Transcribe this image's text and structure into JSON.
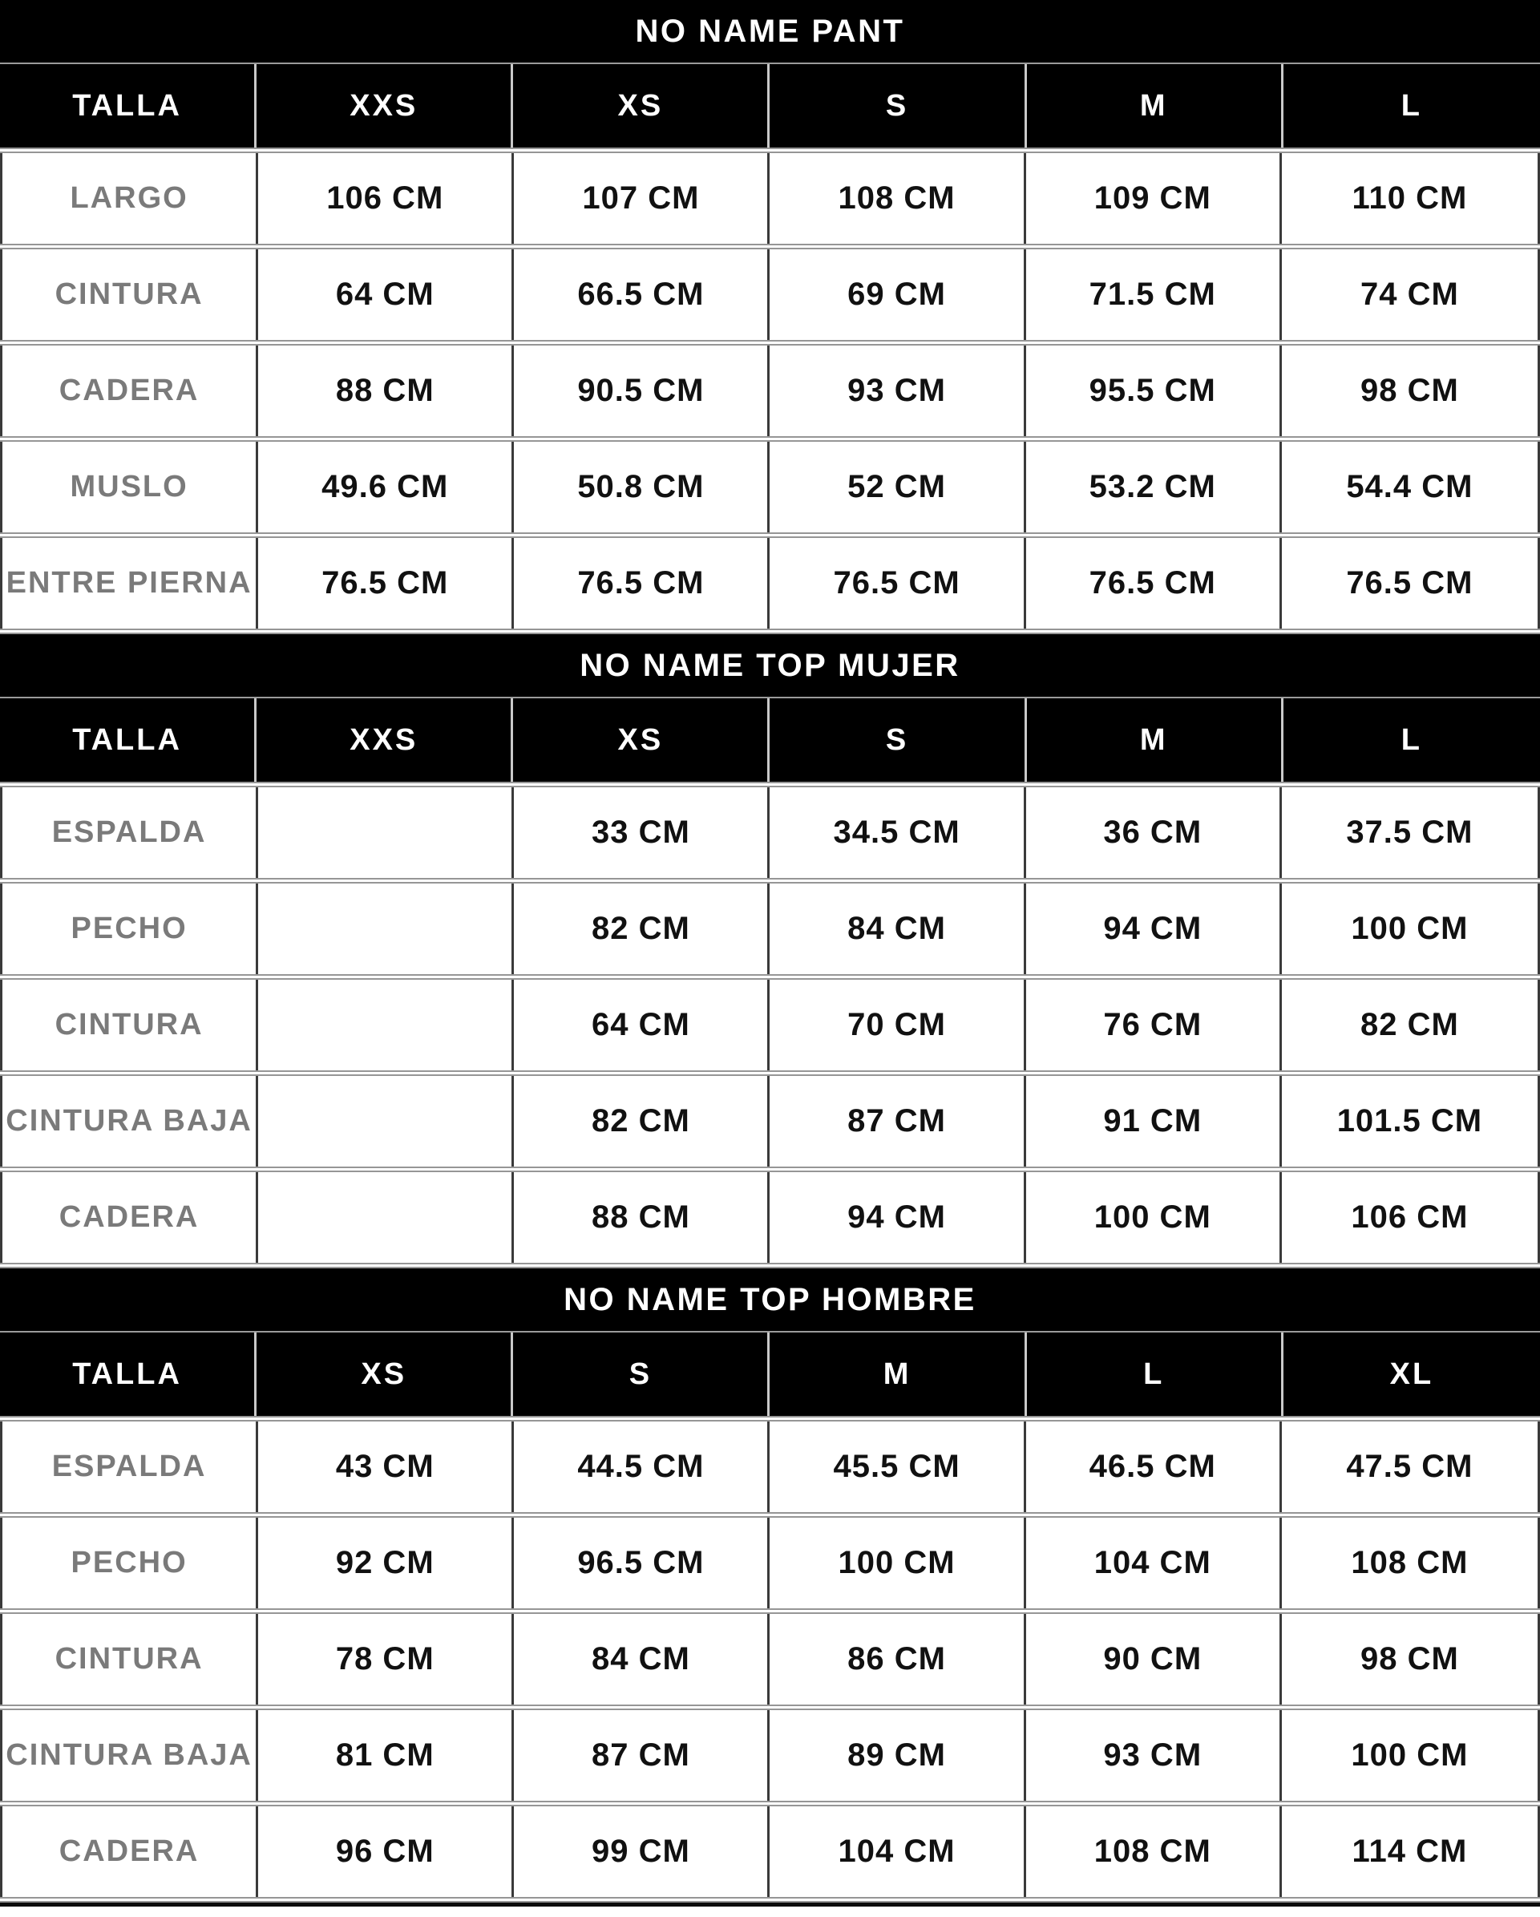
{
  "colors": {
    "band_background": "#000000",
    "band_text": "#ffffff",
    "row_label_text": "#7a7a7a",
    "value_text": "#111111",
    "grid_dark": "#3a3a3a",
    "grid_light": "#c9c9c9",
    "divider_gray": "#969696",
    "page_background": "#ffffff"
  },
  "tables": [
    {
      "title": "NO NAME PANT",
      "header": [
        "TALLA",
        "XXS",
        "XS",
        "S",
        "M",
        "L"
      ],
      "rows": [
        {
          "label": "LARGO",
          "values": [
            "106 CM",
            "107 CM",
            "108 CM",
            "109 CM",
            "110 CM"
          ]
        },
        {
          "label": "CINTURA",
          "values": [
            "64 CM",
            "66.5 CM",
            "69 CM",
            "71.5 CM",
            "74 CM"
          ]
        },
        {
          "label": "CADERA",
          "values": [
            "88 CM",
            "90.5 CM",
            "93 CM",
            "95.5 CM",
            "98 CM"
          ]
        },
        {
          "label": "MUSLO",
          "values": [
            "49.6 CM",
            "50.8 CM",
            "52 CM",
            "53.2 CM",
            "54.4 CM"
          ]
        },
        {
          "label": "ENTRE PIERNA",
          "values": [
            "76.5 CM",
            "76.5 CM",
            "76.5 CM",
            "76.5 CM",
            "76.5 CM"
          ]
        }
      ]
    },
    {
      "title": "NO NAME TOP MUJER",
      "header": [
        "TALLA",
        "XXS",
        "XS",
        "S",
        "M",
        "L"
      ],
      "rows": [
        {
          "label": "ESPALDA",
          "values": [
            "",
            "33 CM",
            "34.5 CM",
            "36 CM",
            "37.5 CM"
          ]
        },
        {
          "label": "PECHO",
          "values": [
            "",
            "82 CM",
            "84 CM",
            "94 CM",
            "100 CM"
          ]
        },
        {
          "label": "CINTURA",
          "values": [
            "",
            "64 CM",
            "70 CM",
            "76 CM",
            "82 CM"
          ]
        },
        {
          "label": "CINTURA BAJA",
          "values": [
            "",
            "82 CM",
            "87 CM",
            "91 CM",
            "101.5 CM"
          ]
        },
        {
          "label": "CADERA",
          "values": [
            "",
            "88 CM",
            "94 CM",
            "100 CM",
            "106 CM"
          ]
        }
      ]
    },
    {
      "title": "NO NAME TOP HOMBRE",
      "header": [
        "TALLA",
        "XS",
        "S",
        "M",
        "L",
        "XL"
      ],
      "rows": [
        {
          "label": "ESPALDA",
          "values": [
            "43 CM",
            "44.5 CM",
            "45.5 CM",
            "46.5 CM",
            "47.5 CM"
          ]
        },
        {
          "label": "PECHO",
          "values": [
            "92 CM",
            "96.5 CM",
            "100 CM",
            "104 CM",
            "108 CM"
          ]
        },
        {
          "label": "CINTURA",
          "values": [
            "78 CM",
            "84 CM",
            "86 CM",
            "90 CM",
            "98 CM"
          ]
        },
        {
          "label": "CINTURA BAJA",
          "values": [
            "81 CM",
            "87 CM",
            "89 CM",
            "93 CM",
            "100 CM"
          ]
        },
        {
          "label": "CADERA",
          "values": [
            "96 CM",
            "99 CM",
            "104 CM",
            "108 CM",
            "114 CM"
          ]
        }
      ]
    }
  ]
}
